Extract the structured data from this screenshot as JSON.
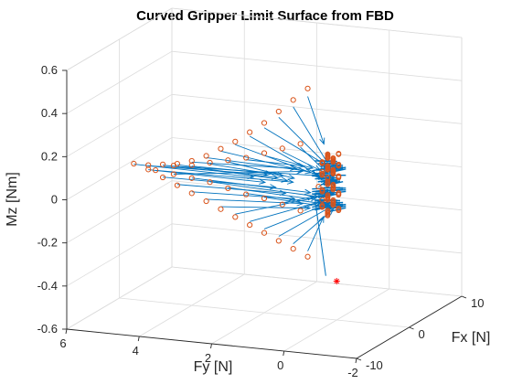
{
  "chart_data": {
    "type": "scatter",
    "title": "Curved Gripper Limit Surface from FBD",
    "xlabel": "Fx [N]",
    "ylabel": "Fy [N]",
    "zlabel": "Mz [Nm]",
    "xlim": [
      -10,
      10
    ],
    "ylim": [
      -2,
      6
    ],
    "zlim": [
      -0.6,
      0.6
    ],
    "x_ticks": [
      {
        "value": -10,
        "label": "-10"
      },
      {
        "value": 0,
        "label": "0"
      },
      {
        "value": 10,
        "label": "10"
      }
    ],
    "y_ticks": [
      {
        "value": -2,
        "label": "-2"
      },
      {
        "value": 0,
        "label": "0"
      },
      {
        "value": 2,
        "label": "2"
      },
      {
        "value": 4,
        "label": "4"
      },
      {
        "value": 6,
        "label": "6"
      }
    ],
    "z_ticks": [
      {
        "value": -0.6,
        "label": "-0.6"
      },
      {
        "value": -0.4,
        "label": "-0.4"
      },
      {
        "value": -0.2,
        "label": "-0.2"
      },
      {
        "value": 0,
        "label": "0"
      },
      {
        "value": 0.2,
        "label": "0.2"
      },
      {
        "value": 0.4,
        "label": "0.4"
      },
      {
        "value": 0.6,
        "label": "0.6"
      }
    ],
    "grid": true,
    "view": "3d",
    "colors": {
      "samples": "#d95319",
      "vectors": "#0072bd",
      "origin": "#ff0000"
    },
    "series": [
      {
        "marker": "circle",
        "points": [
          [
            0,
            0.8,
            -0.32
          ],
          [
            0,
            1.2,
            -0.29
          ],
          [
            0,
            1.6,
            -0.26
          ],
          [
            0,
            2.0,
            -0.23
          ],
          [
            0,
            2.4,
            -0.2
          ],
          [
            0,
            2.8,
            -0.17
          ],
          [
            0,
            3.2,
            -0.14
          ],
          [
            0,
            3.6,
            -0.11
          ],
          [
            0,
            4.0,
            -0.08
          ],
          [
            0,
            4.4,
            -0.05
          ],
          [
            0,
            4.8,
            -0.02
          ],
          [
            0,
            5.2,
            0.01
          ],
          [
            0,
            5.6,
            0.03
          ],
          [
            0,
            0.8,
            0.46
          ],
          [
            0,
            1.2,
            0.4
          ],
          [
            0,
            1.6,
            0.34
          ],
          [
            0,
            2.0,
            0.28
          ],
          [
            0,
            2.4,
            0.23
          ],
          [
            0,
            2.8,
            0.18
          ],
          [
            0,
            3.2,
            0.14
          ],
          [
            0,
            3.6,
            0.1
          ],
          [
            0,
            4.0,
            0.07
          ],
          [
            0,
            4.4,
            0.05
          ],
          [
            0,
            4.8,
            0.04
          ],
          [
            0,
            5.2,
            0.03
          ],
          [
            0,
            1.0,
            -0.11
          ],
          [
            0,
            1.5,
            -0.09
          ],
          [
            0,
            2.0,
            -0.07
          ],
          [
            0,
            2.5,
            -0.06
          ],
          [
            0,
            3.0,
            -0.04
          ],
          [
            0,
            3.5,
            -0.02
          ],
          [
            0,
            4.0,
            -0.01
          ],
          [
            0,
            4.5,
            0.0
          ],
          [
            0,
            5.0,
            0.01
          ],
          [
            0,
            1.0,
            0.2
          ],
          [
            0,
            1.5,
            0.17
          ],
          [
            0,
            2.0,
            0.14
          ],
          [
            0,
            2.5,
            0.11
          ],
          [
            0,
            3.0,
            0.09
          ],
          [
            0,
            3.5,
            0.07
          ],
          [
            0,
            4.0,
            0.05
          ],
          [
            0,
            4.5,
            0.04
          ],
          [
            0,
            0.5,
            0.01
          ],
          [
            0,
            0.4,
            0.08
          ],
          [
            0,
            0.4,
            -0.05
          ]
        ]
      },
      {
        "marker": "star",
        "points": [
          [
            0,
            0,
            -0.42
          ]
        ]
      }
    ]
  }
}
